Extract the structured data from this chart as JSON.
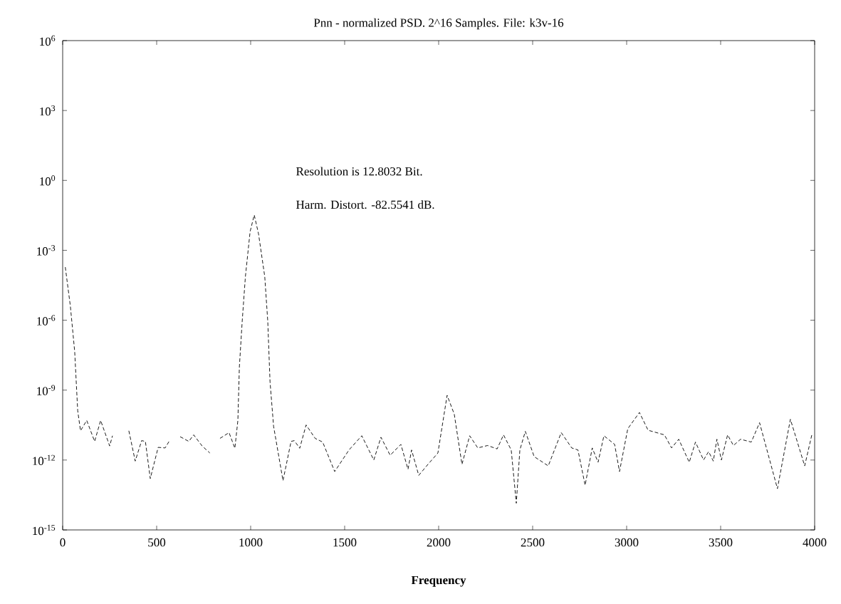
{
  "chart_data": {
    "type": "line",
    "title": "Pnn - normalized PSD. 2^16 Samples. File: k3v-16",
    "xlabel": "**Frequency**",
    "annotations": [
      "Resolution is  12.8032 Bit.",
      "Harm. Distort. -82.5541 dB."
    ],
    "x": [
      14,
      41,
      64,
      80,
      95,
      128,
      170,
      202,
      250,
      265,
      300,
      352,
      386,
      420,
      440,
      466,
      508,
      545,
      566,
      595,
      625,
      671,
      697,
      742,
      783,
      810,
      837,
      885,
      916,
      932,
      940,
      955,
      972,
      997,
      1019,
      1042,
      1075,
      1091,
      1103,
      1122,
      1172,
      1215,
      1232,
      1261,
      1295,
      1343,
      1383,
      1447,
      1523,
      1591,
      1655,
      1693,
      1742,
      1799,
      1837,
      1856,
      1894,
      1943,
      1996,
      2045,
      2083,
      2124,
      2165,
      2208,
      2260,
      2311,
      2345,
      2386,
      2413,
      2432,
      2461,
      2508,
      2583,
      2652,
      2708,
      2741,
      2779,
      2817,
      2848,
      2879,
      2936,
      2962,
      3006,
      3068,
      3114,
      3201,
      3239,
      3277,
      3333,
      3366,
      3409,
      3436,
      3461,
      3480,
      3504,
      3537,
      3568,
      3606,
      3663,
      3707,
      3802,
      3871,
      3947,
      3985
    ],
    "series": [
      {
        "color": "#000000",
        "values": [
          0.00019,
          4e-06,
          4.5e-08,
          1.3e-10,
          1.8e-11,
          5e-11,
          6.3e-12,
          5e-11,
          4e-12,
          1.1e-11,
          null,
          1.8e-11,
          9e-13,
          6.8e-12,
          6.3e-12,
          1.6e-13,
          3.5e-12,
          3.3e-12,
          6.3e-12,
          null,
          1e-11,
          6.3e-12,
          1.2e-11,
          4e-12,
          2e-12,
          null,
          8.5e-12,
          1.5e-11,
          3.2e-12,
          5e-11,
          1e-08,
          9e-07,
          7.4e-05,
          0.0063,
          0.033,
          0.005,
          7.4e-05,
          9e-07,
          2.3e-09,
          2.8e-11,
          1.3e-13,
          6.3e-12,
          6.8e-12,
          3.2e-12,
          3.2e-11,
          8.5e-12,
          5.9e-12,
          3.2e-13,
          2.7e-12,
          1.1e-11,
          1e-12,
          9.5e-12,
          1.6e-12,
          4.7e-12,
          4e-13,
          2.7e-12,
          2.2e-13,
          6.5e-13,
          2e-12,
          6e-10,
          9.3e-11,
          6.5e-13,
          1.1e-11,
          3.3e-12,
          4.2e-12,
          3e-12,
          1.2e-11,
          2.7e-12,
          1.4e-14,
          2.7e-12,
          1.7e-11,
          1.4e-12,
          5.6e-13,
          1.5e-11,
          3.3e-12,
          2.7e-12,
          8.3e-14,
          3.3e-12,
          8e-13,
          1.1e-11,
          4.7e-12,
          3.2e-13,
          2.2e-11,
          1.1e-10,
          1.9e-11,
          1.2e-11,
          3.3e-12,
          7.8e-12,
          8e-13,
          5.9e-12,
          1e-12,
          2.3e-12,
          9e-13,
          7.8e-12,
          1e-12,
          1.2e-11,
          4.2e-12,
          7.8e-12,
          5.9e-12,
          4e-11,
          5.9e-14,
          5.6e-11,
          5.6e-13,
          1.2e-11
        ]
      }
    ],
    "log": "y",
    "line_style": "dashed",
    "marker": "none",
    "xlim": [
      0,
      4000
    ],
    "xticks": [
      0,
      500,
      1000,
      1500,
      2000,
      2500,
      3000,
      3500,
      4000
    ],
    "ylim": [
      1e-15,
      1000000.0
    ],
    "yticks": [
      {
        "value": 1000000.0,
        "label": "10$^{6}$"
      },
      {
        "value": 1000.0,
        "label": "10$^{3}$"
      },
      {
        "value": 1,
        "label": "10$^{0}$"
      },
      {
        "value": 0.001,
        "label": "10$^{-3}$"
      },
      {
        "value": 1e-06,
        "label": "10$^{-6}$"
      },
      {
        "value": 1e-09,
        "label": "10$^{-9}$"
      },
      {
        "value": 1e-12,
        "label": "10$^{-12}$"
      },
      {
        "value": 1e-15,
        "label": "10$^{-15}$"
      }
    ]
  }
}
